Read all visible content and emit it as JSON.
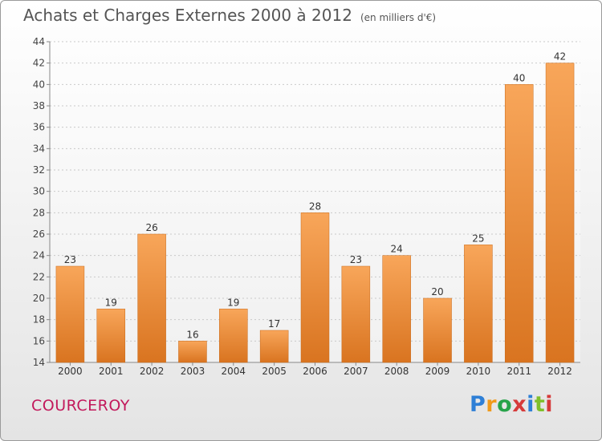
{
  "title": "Achats et Charges Externes 2000 à 2012",
  "unit_note": "(en milliers d'€)",
  "commune": "COURCEROY",
  "logo": {
    "text": "Proxiti",
    "colors": [
      "#2e7fd6",
      "#f09a1a",
      "#27a34a",
      "#d63a3a",
      "#2e7fd6",
      "#7fbf2a",
      "#d63a3a"
    ]
  },
  "colors": {
    "bar_light": "#f8a65a",
    "bar_dark": "#d97420",
    "title": "#555555",
    "commune": "#c2185b"
  },
  "chart_data": {
    "type": "bar",
    "categories": [
      "2000",
      "2001",
      "2002",
      "2003",
      "2004",
      "2005",
      "2006",
      "2007",
      "2008",
      "2009",
      "2010",
      "2011",
      "2012"
    ],
    "values": [
      23,
      19,
      26,
      16,
      19,
      17,
      28,
      23,
      24,
      20,
      25,
      40,
      42
    ],
    "ylim": [
      14,
      44
    ],
    "yticks": [
      14,
      16,
      18,
      20,
      22,
      24,
      26,
      28,
      30,
      32,
      34,
      36,
      38,
      40,
      42,
      44
    ],
    "grid": true,
    "data_labels": true
  }
}
